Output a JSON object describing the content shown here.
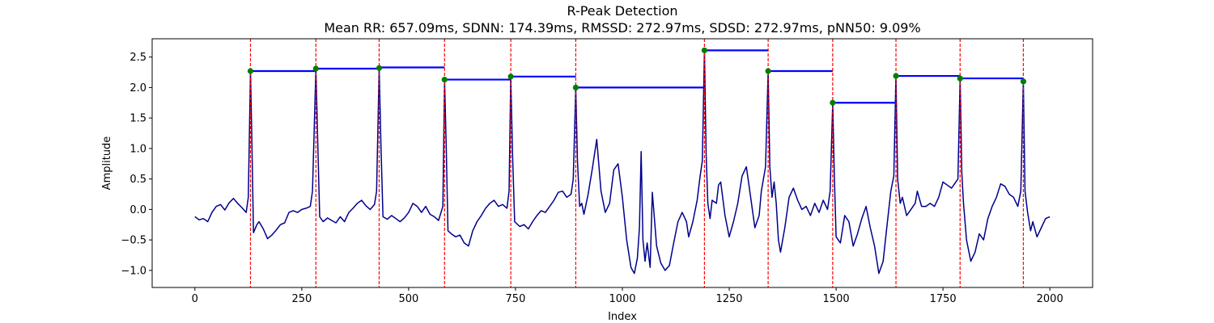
{
  "chart_data": {
    "type": "line",
    "title": "R-Peak Detection",
    "subtitle": "Mean RR: 657.09ms, SDNN: 174.39ms, RMSSD: 272.97ms, SDSD: 272.97ms, pNN50: 9.09%",
    "xlabel": "Index",
    "ylabel": "Amplitude",
    "xlim": [
      -100,
      2100
    ],
    "ylim": [
      -1.28,
      2.8
    ],
    "x_ticks": [
      0,
      250,
      500,
      750,
      1000,
      1250,
      1500,
      1750,
      2000
    ],
    "y_ticks": [
      -1.0,
      -0.5,
      0.0,
      0.5,
      1.0,
      1.5,
      2.0,
      2.5
    ],
    "grid": false,
    "colors": {
      "signal": "#00008b",
      "peak_lines": "#ff0000",
      "rr_intervals": "#0000ff",
      "peak_markers": "#008000"
    },
    "series": [
      {
        "kind": "signal",
        "points": [
          [
            0,
            -0.12
          ],
          [
            10,
            -0.17
          ],
          [
            20,
            -0.15
          ],
          [
            30,
            -0.2
          ],
          [
            40,
            -0.05
          ],
          [
            50,
            0.05
          ],
          [
            60,
            0.08
          ],
          [
            70,
            -0.01
          ],
          [
            80,
            0.11
          ],
          [
            90,
            0.18
          ],
          [
            100,
            0.1
          ],
          [
            110,
            0.03
          ],
          [
            120,
            -0.05
          ],
          [
            125,
            0.2
          ],
          [
            130,
            2.27
          ],
          [
            133,
            1.2
          ],
          [
            137,
            -0.38
          ],
          [
            145,
            -0.25
          ],
          [
            150,
            -0.2
          ],
          [
            160,
            -0.32
          ],
          [
            170,
            -0.48
          ],
          [
            180,
            -0.42
          ],
          [
            190,
            -0.34
          ],
          [
            200,
            -0.25
          ],
          [
            210,
            -0.22
          ],
          [
            220,
            -0.05
          ],
          [
            230,
            -0.02
          ],
          [
            240,
            -0.05
          ],
          [
            250,
            0.0
          ],
          [
            260,
            0.02
          ],
          [
            270,
            0.05
          ],
          [
            275,
            0.3
          ],
          [
            283,
            2.31
          ],
          [
            287,
            1.2
          ],
          [
            292,
            -0.12
          ],
          [
            300,
            -0.2
          ],
          [
            310,
            -0.14
          ],
          [
            320,
            -0.18
          ],
          [
            330,
            -0.22
          ],
          [
            340,
            -0.12
          ],
          [
            350,
            -0.2
          ],
          [
            360,
            -0.05
          ],
          [
            370,
            0.02
          ],
          [
            380,
            0.1
          ],
          [
            390,
            0.15
          ],
          [
            400,
            0.06
          ],
          [
            410,
            0.0
          ],
          [
            420,
            0.08
          ],
          [
            425,
            0.3
          ],
          [
            431,
            2.32
          ],
          [
            435,
            1.1
          ],
          [
            440,
            -0.12
          ],
          [
            450,
            -0.16
          ],
          [
            460,
            -0.1
          ],
          [
            470,
            -0.15
          ],
          [
            480,
            -0.2
          ],
          [
            490,
            -0.14
          ],
          [
            500,
            -0.05
          ],
          [
            510,
            0.1
          ],
          [
            520,
            0.05
          ],
          [
            530,
            -0.05
          ],
          [
            540,
            0.05
          ],
          [
            550,
            -0.08
          ],
          [
            560,
            -0.12
          ],
          [
            570,
            -0.18
          ],
          [
            580,
            0.05
          ],
          [
            584,
            2.13
          ],
          [
            588,
            1.0
          ],
          [
            592,
            -0.35
          ],
          [
            600,
            -0.4
          ],
          [
            610,
            -0.45
          ],
          [
            620,
            -0.42
          ],
          [
            630,
            -0.55
          ],
          [
            640,
            -0.6
          ],
          [
            650,
            -0.35
          ],
          [
            660,
            -0.2
          ],
          [
            670,
            -0.1
          ],
          [
            680,
            0.02
          ],
          [
            690,
            0.1
          ],
          [
            700,
            0.15
          ],
          [
            710,
            0.05
          ],
          [
            720,
            0.08
          ],
          [
            730,
            0.02
          ],
          [
            735,
            0.3
          ],
          [
            739,
            2.18
          ],
          [
            743,
            0.9
          ],
          [
            748,
            -0.2
          ],
          [
            760,
            -0.28
          ],
          [
            770,
            -0.25
          ],
          [
            780,
            -0.32
          ],
          [
            790,
            -0.2
          ],
          [
            800,
            -0.1
          ],
          [
            810,
            -0.02
          ],
          [
            820,
            -0.05
          ],
          [
            830,
            0.05
          ],
          [
            840,
            0.15
          ],
          [
            850,
            0.28
          ],
          [
            860,
            0.3
          ],
          [
            870,
            0.2
          ],
          [
            880,
            0.25
          ],
          [
            885,
            0.5
          ],
          [
            891,
            2.0
          ],
          [
            895,
            0.8
          ],
          [
            900,
            0.05
          ],
          [
            905,
            0.1
          ],
          [
            910,
            -0.08
          ],
          [
            920,
            0.25
          ],
          [
            930,
            0.68
          ],
          [
            940,
            1.15
          ],
          [
            950,
            0.3
          ],
          [
            960,
            -0.05
          ],
          [
            970,
            0.1
          ],
          [
            980,
            0.65
          ],
          [
            990,
            0.75
          ],
          [
            1000,
            0.2
          ],
          [
            1010,
            -0.5
          ],
          [
            1020,
            -0.95
          ],
          [
            1028,
            -1.05
          ],
          [
            1035,
            -0.8
          ],
          [
            1040,
            -0.3
          ],
          [
            1044,
            0.95
          ],
          [
            1048,
            -0.5
          ],
          [
            1053,
            -0.85
          ],
          [
            1058,
            -0.55
          ],
          [
            1065,
            -0.95
          ],
          [
            1070,
            0.28
          ],
          [
            1080,
            -0.6
          ],
          [
            1090,
            -0.88
          ],
          [
            1100,
            -1.0
          ],
          [
            1110,
            -0.92
          ],
          [
            1120,
            -0.55
          ],
          [
            1130,
            -0.2
          ],
          [
            1140,
            -0.05
          ],
          [
            1150,
            -0.2
          ],
          [
            1155,
            -0.45
          ],
          [
            1165,
            -0.2
          ],
          [
            1175,
            0.15
          ],
          [
            1182,
            0.55
          ],
          [
            1187,
            0.8
          ],
          [
            1192,
            2.61
          ],
          [
            1196,
            0.9
          ],
          [
            1200,
            0.1
          ],
          [
            1205,
            -0.15
          ],
          [
            1210,
            0.15
          ],
          [
            1220,
            0.1
          ],
          [
            1225,
            0.4
          ],
          [
            1230,
            0.45
          ],
          [
            1240,
            -0.1
          ],
          [
            1250,
            -0.45
          ],
          [
            1260,
            -0.2
          ],
          [
            1270,
            0.1
          ],
          [
            1280,
            0.55
          ],
          [
            1290,
            0.7
          ],
          [
            1300,
            0.2
          ],
          [
            1310,
            -0.3
          ],
          [
            1320,
            -0.1
          ],
          [
            1325,
            0.3
          ],
          [
            1330,
            0.5
          ],
          [
            1335,
            0.7
          ],
          [
            1341,
            2.27
          ],
          [
            1345,
            0.7
          ],
          [
            1350,
            0.2
          ],
          [
            1355,
            0.45
          ],
          [
            1360,
            0.1
          ],
          [
            1365,
            -0.5
          ],
          [
            1370,
            -0.7
          ],
          [
            1380,
            -0.3
          ],
          [
            1390,
            0.2
          ],
          [
            1400,
            0.35
          ],
          [
            1410,
            0.15
          ],
          [
            1420,
            0.0
          ],
          [
            1430,
            0.05
          ],
          [
            1440,
            -0.1
          ],
          [
            1450,
            0.1
          ],
          [
            1460,
            -0.05
          ],
          [
            1470,
            0.15
          ],
          [
            1480,
            0.0
          ],
          [
            1486,
            0.3
          ],
          [
            1492,
            1.75
          ],
          [
            1496,
            0.5
          ],
          [
            1500,
            -0.45
          ],
          [
            1510,
            -0.55
          ],
          [
            1520,
            -0.1
          ],
          [
            1530,
            -0.2
          ],
          [
            1540,
            -0.6
          ],
          [
            1550,
            -0.4
          ],
          [
            1560,
            -0.15
          ],
          [
            1570,
            0.05
          ],
          [
            1580,
            -0.3
          ],
          [
            1590,
            -0.6
          ],
          [
            1600,
            -1.05
          ],
          [
            1610,
            -0.85
          ],
          [
            1620,
            -0.2
          ],
          [
            1628,
            0.3
          ],
          [
            1635,
            0.55
          ],
          [
            1640,
            2.19
          ],
          [
            1644,
            0.5
          ],
          [
            1650,
            0.1
          ],
          [
            1655,
            0.2
          ],
          [
            1665,
            -0.1
          ],
          [
            1675,
            0.0
          ],
          [
            1685,
            0.1
          ],
          [
            1690,
            0.3
          ],
          [
            1700,
            0.05
          ],
          [
            1710,
            0.05
          ],
          [
            1720,
            0.1
          ],
          [
            1730,
            0.05
          ],
          [
            1740,
            0.2
          ],
          [
            1750,
            0.45
          ],
          [
            1760,
            0.4
          ],
          [
            1770,
            0.35
          ],
          [
            1780,
            0.45
          ],
          [
            1785,
            0.5
          ],
          [
            1790,
            2.15
          ],
          [
            1794,
            0.6
          ],
          [
            1798,
            0.1
          ],
          [
            1805,
            -0.5
          ],
          [
            1815,
            -0.85
          ],
          [
            1825,
            -0.7
          ],
          [
            1835,
            -0.4
          ],
          [
            1845,
            -0.5
          ],
          [
            1855,
            -0.15
          ],
          [
            1865,
            0.05
          ],
          [
            1875,
            0.2
          ],
          [
            1885,
            0.42
          ],
          [
            1895,
            0.38
          ],
          [
            1905,
            0.25
          ],
          [
            1915,
            0.2
          ],
          [
            1925,
            0.05
          ],
          [
            1932,
            0.3
          ],
          [
            1938,
            2.1
          ],
          [
            1942,
            0.3
          ],
          [
            1948,
            -0.05
          ],
          [
            1955,
            -0.35
          ],
          [
            1960,
            -0.2
          ],
          [
            1970,
            -0.45
          ],
          [
            1980,
            -0.3
          ],
          [
            1990,
            -0.15
          ],
          [
            2000,
            -0.12
          ]
        ]
      },
      {
        "kind": "r-peaks",
        "x": [
          130,
          283,
          431,
          584,
          739,
          891,
          1192,
          1341,
          1492,
          1640,
          1790,
          1938
        ],
        "y": [
          2.27,
          2.31,
          2.32,
          2.13,
          2.18,
          2.0,
          2.61,
          2.27,
          1.75,
          2.19,
          2.15,
          2.1
        ]
      },
      {
        "kind": "rr-intervals",
        "segments": [
          [
            130,
            283,
            2.27
          ],
          [
            283,
            431,
            2.31
          ],
          [
            431,
            584,
            2.33
          ],
          [
            584,
            739,
            2.13
          ],
          [
            739,
            891,
            2.18
          ],
          [
            891,
            1192,
            2.0
          ],
          [
            1192,
            1341,
            2.61
          ],
          [
            1341,
            1492,
            2.27
          ],
          [
            1492,
            1640,
            1.75
          ],
          [
            1640,
            1790,
            2.19
          ],
          [
            1790,
            1938,
            2.15
          ]
        ]
      }
    ]
  }
}
